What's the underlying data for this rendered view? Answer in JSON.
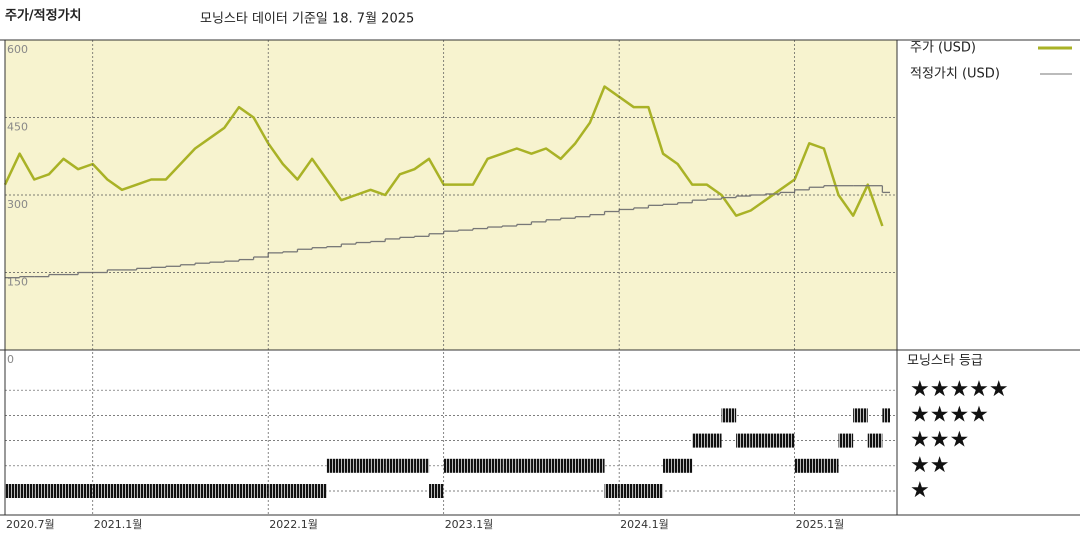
{
  "chart_data": [
    {
      "type": "line",
      "title": "주가/적정가치",
      "subtitle": "모닝스타 데이터 기준일 18. 7월 2025",
      "x": [
        "2020-07",
        "2020-08",
        "2020-09",
        "2020-10",
        "2020-11",
        "2020-12",
        "2021-01",
        "2021-02",
        "2021-03",
        "2021-04",
        "2021-05",
        "2021-06",
        "2021-07",
        "2021-08",
        "2021-09",
        "2021-10",
        "2021-11",
        "2021-12",
        "2022-01",
        "2022-02",
        "2022-03",
        "2022-04",
        "2022-05",
        "2022-06",
        "2022-07",
        "2022-08",
        "2022-09",
        "2022-10",
        "2022-11",
        "2022-12",
        "2023-01",
        "2023-02",
        "2023-03",
        "2023-04",
        "2023-05",
        "2023-06",
        "2023-07",
        "2023-08",
        "2023-09",
        "2023-10",
        "2023-11",
        "2023-12",
        "2024-01",
        "2024-02",
        "2024-03",
        "2024-04",
        "2024-05",
        "2024-06",
        "2024-07",
        "2024-08",
        "2024-09",
        "2024-10",
        "2024-11",
        "2024-12",
        "2025-01",
        "2025-02",
        "2025-03",
        "2025-04",
        "2025-05",
        "2025-06",
        "2025-07"
      ],
      "xlim": [
        "2020-07",
        "2025-08"
      ],
      "series": [
        {
          "name": "주가 (USD)",
          "color": "#a9b226",
          "style": "line",
          "values": [
            320,
            380,
            330,
            340,
            370,
            350,
            360,
            330,
            310,
            320,
            330,
            330,
            360,
            390,
            410,
            430,
            470,
            450,
            400,
            360,
            330,
            370,
            330,
            290,
            300,
            310,
            300,
            340,
            350,
            370,
            320,
            320,
            320,
            370,
            380,
            390,
            380,
            390,
            370,
            400,
            440,
            510,
            490,
            470,
            470,
            380,
            360,
            320,
            320,
            300,
            260,
            270,
            290,
            310,
            330,
            400,
            390,
            300,
            260,
            320,
            240
          ]
        },
        {
          "name": "적정가치 (USD)",
          "color": "#777777",
          "style": "step",
          "values": [
            140,
            142,
            142,
            146,
            146,
            150,
            150,
            155,
            155,
            158,
            160,
            162,
            165,
            168,
            170,
            172,
            175,
            180,
            188,
            190,
            195,
            198,
            200,
            205,
            208,
            210,
            215,
            218,
            220,
            225,
            230,
            232,
            235,
            238,
            240,
            243,
            248,
            252,
            255,
            258,
            262,
            268,
            272,
            275,
            280,
            282,
            285,
            290,
            292,
            295,
            298,
            300,
            302,
            305,
            310,
            315,
            318,
            318,
            318,
            318,
            305
          ]
        }
      ],
      "ylim": [
        0,
        600
      ],
      "yticks": [
        0,
        150,
        300,
        450,
        600
      ],
      "grid": true,
      "background": "#f7f3cf"
    },
    {
      "type": "rating",
      "title": "모닝스타 등급",
      "levels": [
        "★",
        "★★",
        "★★★",
        "★★★★",
        "★★★★★"
      ],
      "x": [
        "2020-07",
        "2020-08",
        "2020-09",
        "2020-10",
        "2020-11",
        "2020-12",
        "2021-01",
        "2021-02",
        "2021-03",
        "2021-04",
        "2021-05",
        "2021-06",
        "2021-07",
        "2021-08",
        "2021-09",
        "2021-10",
        "2021-11",
        "2021-12",
        "2022-01",
        "2022-02",
        "2022-03",
        "2022-04",
        "2022-05",
        "2022-06",
        "2022-07",
        "2022-08",
        "2022-09",
        "2022-10",
        "2022-11",
        "2022-12",
        "2023-01",
        "2023-02",
        "2023-03",
        "2023-04",
        "2023-05",
        "2023-06",
        "2023-07",
        "2023-08",
        "2023-09",
        "2023-10",
        "2023-11",
        "2023-12",
        "2024-01",
        "2024-02",
        "2024-03",
        "2024-04",
        "2024-05",
        "2024-06",
        "2024-07",
        "2024-08",
        "2024-09",
        "2024-10",
        "2024-11",
        "2024-12",
        "2025-01",
        "2025-02",
        "2025-03",
        "2025-04",
        "2025-05",
        "2025-06",
        "2025-07"
      ],
      "values": [
        1,
        1,
        1,
        1,
        1,
        1,
        1,
        1,
        1,
        1,
        1,
        1,
        1,
        1,
        1,
        1,
        1,
        1,
        1,
        1,
        1,
        1,
        2,
        2,
        2,
        2,
        2,
        2,
        2,
        1,
        2,
        2,
        2,
        2,
        2,
        2,
        2,
        2,
        2,
        2,
        2,
        1,
        1,
        1,
        1,
        2,
        2,
        3,
        3,
        4,
        3,
        3,
        3,
        3,
        2,
        2,
        2,
        3,
        4,
        3,
        4
      ],
      "xlim": [
        "2020-07",
        "2025-08"
      ],
      "xticks": [
        {
          "value": "2020-07",
          "label": "2020.7월"
        },
        {
          "value": "2021-01",
          "label": "2021.1월"
        },
        {
          "value": "2022-01",
          "label": "2022.1월"
        },
        {
          "value": "2023-01",
          "label": "2023.1월"
        },
        {
          "value": "2024-01",
          "label": "2024.1월"
        },
        {
          "value": "2025-01",
          "label": "2025.1월"
        }
      ]
    }
  ]
}
